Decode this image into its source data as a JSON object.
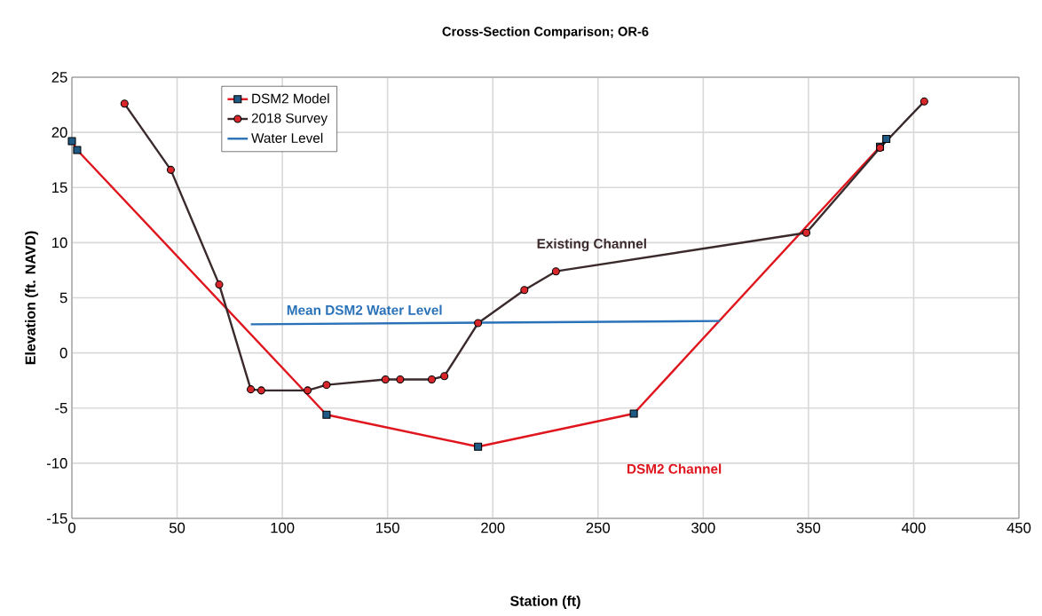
{
  "chart_data": {
    "type": "line",
    "title": "Cross-Section Comparison; OR-6",
    "xlabel": "Station (ft)",
    "ylabel": "Elevation (ft. NAVD)",
    "xlim": [
      0,
      450
    ],
    "xticks": [
      0,
      50,
      100,
      150,
      200,
      250,
      300,
      350,
      400,
      450
    ],
    "ylim": [
      -15,
      25
    ],
    "yticks": [
      -15,
      -10,
      -5,
      0,
      5,
      10,
      15,
      20,
      25
    ],
    "grid": true,
    "legend": "top left",
    "line_style": "solid",
    "series": [
      {
        "name": "DSM2 Model",
        "color": "#e0161e",
        "marker": "square",
        "x": [
          0,
          2.5,
          121,
          193,
          267,
          384,
          387
        ],
        "values": [
          19.2,
          18.4,
          -5.6,
          -8.5,
          -5.5,
          18.7,
          19.4
        ],
        "colors": [
          "#1f5a85",
          "#1f5a85",
          "#1f5a85",
          "#1f5a85",
          "#1f5a85",
          "#1f5a85",
          "#1f5a85"
        ]
      },
      {
        "name": "2018 Survey",
        "color": "#3a2a2c",
        "marker": "circle",
        "x": [
          25,
          47,
          70,
          85,
          90,
          112,
          121,
          149,
          156,
          171,
          177,
          193,
          215,
          230,
          349,
          384,
          405
        ],
        "values": [
          22.6,
          16.6,
          6.2,
          -3.3,
          -3.4,
          -3.4,
          -2.9,
          -2.4,
          -2.4,
          -2.4,
          -2.1,
          2.7,
          5.7,
          7.4,
          10.9,
          18.6,
          22.8
        ],
        "colors": [
          "#d9262b",
          "#d9262b",
          "#d9262b",
          "#d9262b",
          "#d9262b",
          "#d9262b",
          "#d9262b",
          "#d9262b",
          "#d9262b",
          "#d9262b",
          "#d9262b",
          "#d9262b",
          "#d9262b",
          "#d9262b",
          "#d9262b",
          "#d9262b",
          "#d9262b"
        ]
      },
      {
        "name": "Water Level",
        "color": "#2a72b8",
        "marker": "none",
        "x": [
          85,
          308
        ],
        "values": [
          2.6,
          2.9
        ]
      }
    ],
    "annotations": [
      "DSM2 Channel",
      "Existing Channel",
      "Mean DSM2 Water Level"
    ]
  }
}
